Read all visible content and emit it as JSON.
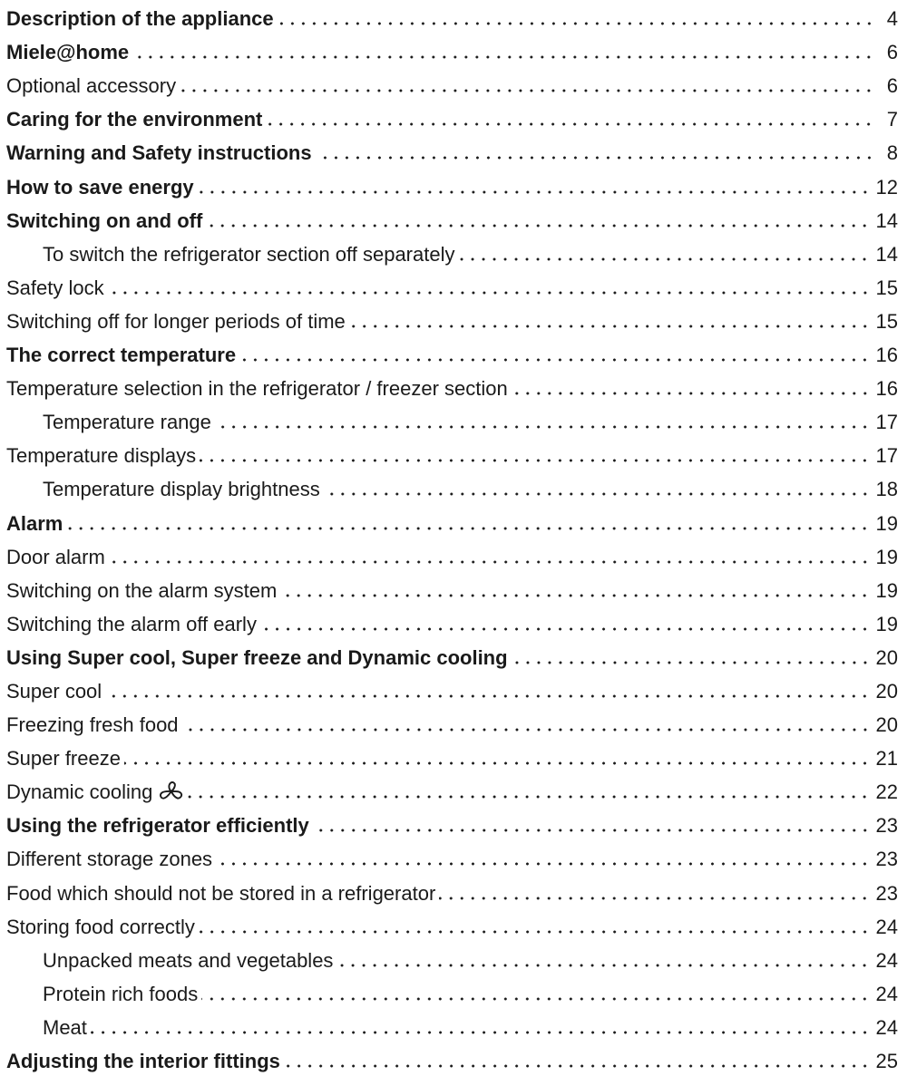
{
  "toc": {
    "entries": [
      {
        "title": "Description of the appliance",
        "page": "4",
        "level": 0,
        "bold": true
      },
      {
        "title": "Miele@home",
        "page": "6",
        "level": 0,
        "bold": true
      },
      {
        "title": "Optional accessory",
        "page": "6",
        "level": 0,
        "bold": false
      },
      {
        "title": "Caring for the environment",
        "page": "7",
        "level": 0,
        "bold": true
      },
      {
        "title": "Warning and Safety instructions",
        "page": "8",
        "level": 0,
        "bold": true
      },
      {
        "title": "How to save energy",
        "page": "12",
        "level": 0,
        "bold": true
      },
      {
        "title": "Switching on and off",
        "page": "14",
        "level": 0,
        "bold": true
      },
      {
        "title": "To switch the refrigerator section off separately",
        "page": "14",
        "level": 1,
        "bold": false
      },
      {
        "title": "Safety lock",
        "page": "15",
        "level": 0,
        "bold": false
      },
      {
        "title": "Switching off for longer periods of time",
        "page": "15",
        "level": 0,
        "bold": false
      },
      {
        "title": "The correct temperature",
        "page": "16",
        "level": 0,
        "bold": true
      },
      {
        "title": "Temperature selection in the refrigerator / freezer section",
        "page": "16",
        "level": 0,
        "bold": false
      },
      {
        "title": "Temperature range",
        "page": "17",
        "level": 1,
        "bold": false
      },
      {
        "title": "Temperature displays",
        "page": "17",
        "level": 0,
        "bold": false
      },
      {
        "title": "Temperature display brightness",
        "page": "18",
        "level": 1,
        "bold": false
      },
      {
        "title": "Alarm",
        "page": "19",
        "level": 0,
        "bold": true
      },
      {
        "title": "Door alarm",
        "page": "19",
        "level": 0,
        "bold": false
      },
      {
        "title": "Switching on the alarm system",
        "page": "19",
        "level": 0,
        "bold": false
      },
      {
        "title": "Switching the alarm off early",
        "page": "19",
        "level": 0,
        "bold": false
      },
      {
        "title": "Using Super cool, Super freeze and Dynamic cooling",
        "page": "20",
        "level": 0,
        "bold": true
      },
      {
        "title": "Super cool",
        "page": "20",
        "level": 0,
        "bold": false
      },
      {
        "title": "Freezing fresh food",
        "page": "20",
        "level": 0,
        "bold": false
      },
      {
        "title": "Super freeze",
        "page": "21",
        "level": 0,
        "bold": false
      },
      {
        "title": "Dynamic cooling",
        "page": "22",
        "level": 0,
        "bold": false,
        "icon": "fan-icon"
      },
      {
        "title": "Using the refrigerator efficiently",
        "page": "23",
        "level": 0,
        "bold": true
      },
      {
        "title": "Different storage zones",
        "page": "23",
        "level": 0,
        "bold": false
      },
      {
        "title": "Food which should not be stored in a refrigerator",
        "page": "23",
        "level": 0,
        "bold": false
      },
      {
        "title": "Storing food correctly",
        "page": "24",
        "level": 0,
        "bold": false
      },
      {
        "title": "Unpacked meats and vegetables",
        "page": "24",
        "level": 2,
        "bold": false
      },
      {
        "title": "Protein rich foods",
        "page": "24",
        "level": 2,
        "bold": false
      },
      {
        "title": "Meat",
        "page": "24",
        "level": 2,
        "bold": false
      },
      {
        "title": "Adjusting the interior fittings",
        "page": "25",
        "level": 0,
        "bold": true
      }
    ]
  },
  "colors": {
    "text": "#1a1a1a",
    "background": "#ffffff"
  }
}
